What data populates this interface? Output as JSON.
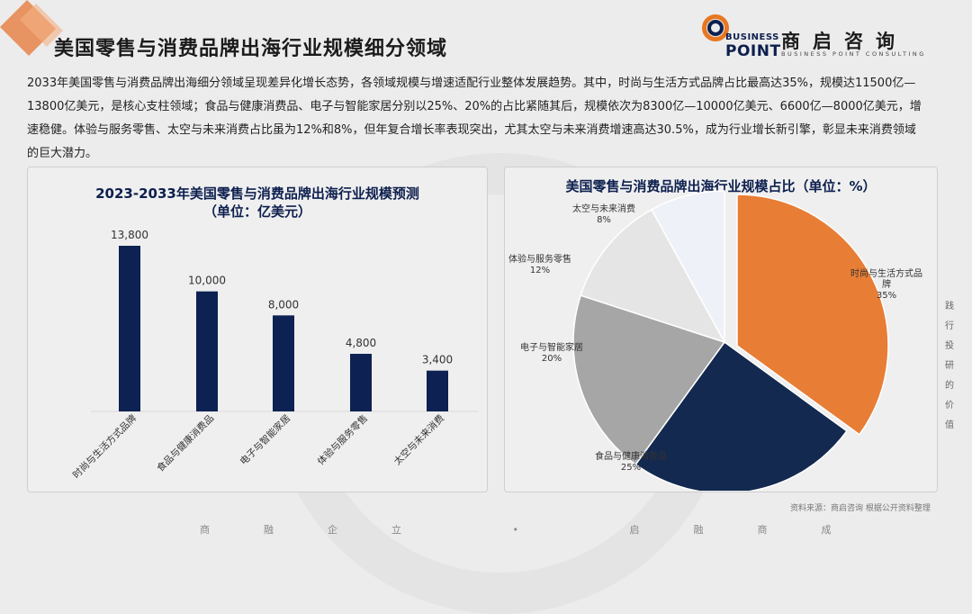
{
  "header": {
    "title": "美国零售与消费品牌出海行业规模细分领域",
    "logo_word1": "BUSINESS",
    "logo_word2": "POINT",
    "logo_cn": "商启咨询",
    "logo_sub": "BUSINESS POINT CONSULTING"
  },
  "description": "2033年美国零售与消费品牌出海细分领域呈现差异化增长态势，各领域规模与增速适配行业整体发展趋势。其中，时尚与生活方式品牌占比最高达35%，规模达11500亿—13800亿美元，是核心支柱领域；食品与健康消费品、电子与智能家居分别以25%、20%的占比紧随其后，规模依次为8300亿—10000亿美元、6600亿—8000亿美元，增速稳健。体验与服务零售、太空与未来消费占比虽为12%和8%，但年复合增长率表现突出，尤其太空与未来消费增速高达30.5%，成为行业增长新引擎，彰显未来消费领域的巨大潜力。",
  "colors": {
    "bar": "#0d2252",
    "orange": "#e87d35",
    "navy": "#13294f",
    "gray": "#a6a6a6",
    "light": "#e5e5e5",
    "pale": "#eef1f7"
  },
  "chart_data": [
    {
      "type": "bar",
      "title_line1": "2023-2033年美国零售与消费品牌出海行业规模预测",
      "title_line2": "（单位：亿美元）",
      "categories": [
        "时尚与生活方式品牌",
        "食品与健康消费品",
        "电子与智能家居",
        "体验与服务零售",
        "太空与未来消费"
      ],
      "values": [
        13800,
        10000,
        8000,
        4800,
        3400
      ],
      "value_labels": [
        "13,800",
        "10,000",
        "8,000",
        "4,800",
        "3,400"
      ],
      "ylim": [
        0,
        15000
      ],
      "grid": false
    },
    {
      "type": "pie",
      "title": "美国零售与消费品牌出海行业规模占比（单位：%）",
      "labels": [
        "时尚与生活方式品牌",
        "食品与健康消费品",
        "电子与智能家居",
        "体验与服务零售",
        "太空与未来消费"
      ],
      "values": [
        35,
        25,
        20,
        12,
        8
      ],
      "value_labels": [
        "35%",
        "25%",
        "20%",
        "12%",
        "8%"
      ]
    }
  ],
  "side_note": "践行投研的价值",
  "source": "资料来源：商启咨询 根据公开资料整理",
  "footer": "商融企立 • 启融商成"
}
